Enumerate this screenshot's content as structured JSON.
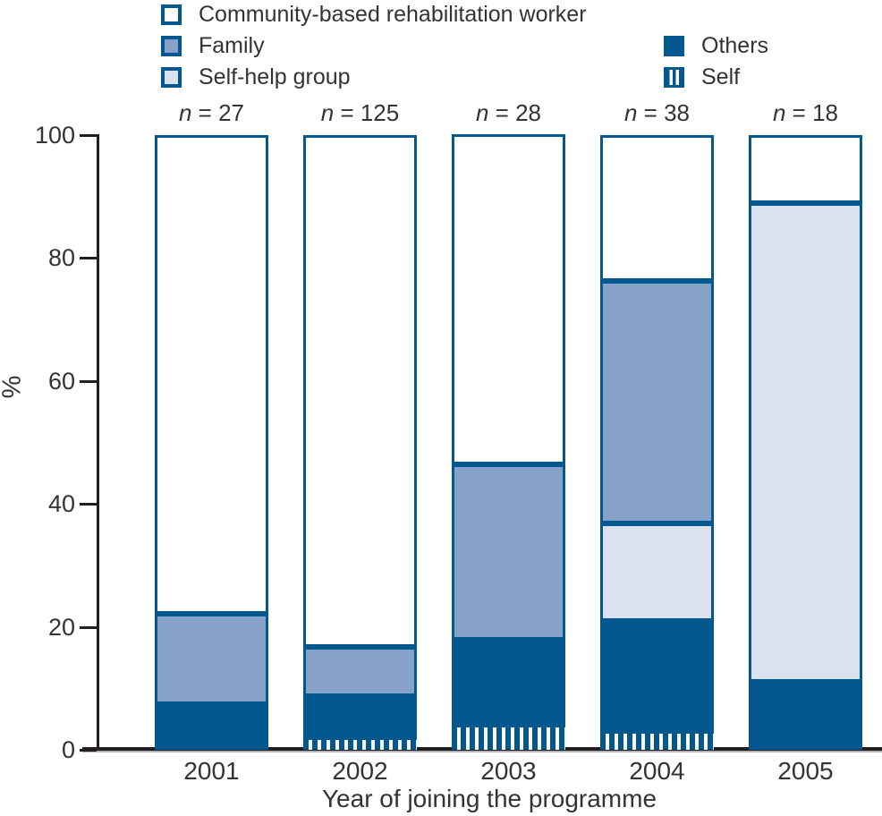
{
  "chart_data": {
    "type": "bar",
    "variant": "stacked-100-percent",
    "title": "",
    "xlabel": "Year of joining the programme",
    "ylabel": "%",
    "ylim": [
      0,
      100
    ],
    "yticks": [
      0,
      20,
      40,
      60,
      80,
      100
    ],
    "grid": false,
    "legend_position": "top",
    "categories": [
      "2001",
      "2002",
      "2003",
      "2004",
      "2005"
    ],
    "n_symbol": "n",
    "n_separator": " = ",
    "n_values": [
      27,
      125,
      28,
      38,
      18
    ],
    "series": [
      {
        "name": "Self",
        "key": "self",
        "pattern": "vertical-stripes",
        "values": [
          0,
          1.6,
          3.6,
          2.6,
          0
        ]
      },
      {
        "name": "Others",
        "key": "others",
        "values": [
          7.4,
          7.2,
          14.3,
          18.4,
          11.1
        ]
      },
      {
        "name": "Self-help group",
        "key": "self_help",
        "values": [
          0,
          0,
          0,
          15.8,
          77.8
        ]
      },
      {
        "name": "Family",
        "key": "family",
        "values": [
          14.8,
          8.0,
          28.6,
          39.5,
          0
        ]
      },
      {
        "name": "Community-based rehabilitation worker",
        "key": "cbr",
        "values": [
          77.8,
          83.2,
          53.6,
          23.7,
          11.1
        ]
      }
    ],
    "stack_order_bottom_to_top": [
      "self",
      "others",
      "self_help",
      "family",
      "cbr"
    ]
  },
  "colors": {
    "bar_border": "#02588f",
    "others": "#02588f",
    "family": "#87a2c8",
    "self_help": "#dbe1ef",
    "cbr": "#ffffff",
    "axis": "#231f20",
    "text": "#333333"
  }
}
